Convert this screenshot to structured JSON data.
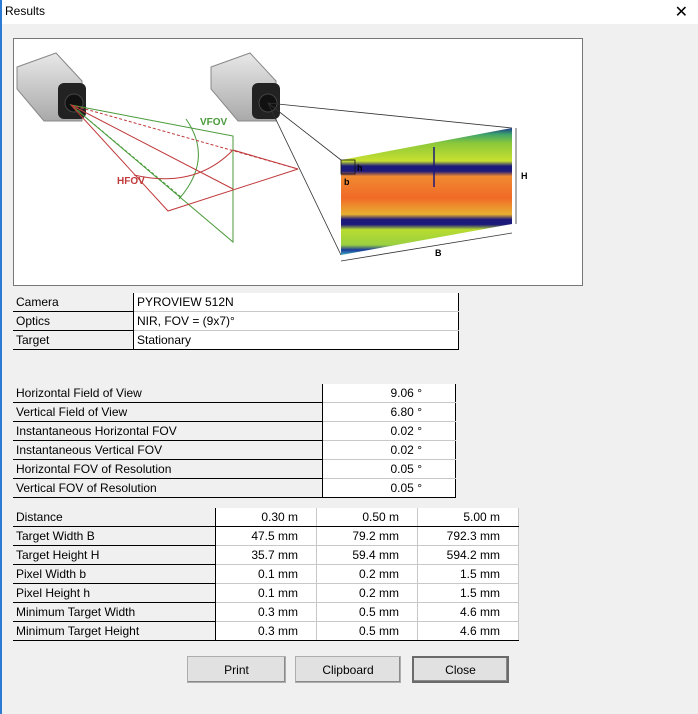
{
  "window": {
    "title": "Results",
    "close_icon": "close-icon"
  },
  "diagram": {
    "vfov_label": "VFOV",
    "hfov_label": "HFOV",
    "h_label": "H",
    "b_label": "B",
    "pixel_h_label": "h",
    "pixel_b_label": "b"
  },
  "info": [
    {
      "label": "Camera",
      "value": "PYROVIEW 512N"
    },
    {
      "label": "Optics",
      "value": "NIR, FOV = (9x7)°"
    },
    {
      "label": "Target",
      "value": "Stationary"
    }
  ],
  "fov": [
    {
      "label": "Horizontal Field of View",
      "value": "9.06 °"
    },
    {
      "label": "Vertical Field of View",
      "value": "6.80 °"
    },
    {
      "label": "Instantaneous Horizontal FOV",
      "value": "0.02 °"
    },
    {
      "label": "Instantaneous Vertical FOV",
      "value": "0.02 °"
    },
    {
      "label": "Horizontal FOV of Resolution",
      "value": "0.05 °"
    },
    {
      "label": "Vertical FOV of Resolution",
      "value": "0.05 °"
    }
  ],
  "distances": {
    "header": {
      "label": "Distance",
      "values": [
        "0.30 m",
        "0.50 m",
        "5.00 m"
      ]
    },
    "rows": [
      {
        "label": "Target Width B",
        "values": [
          "47.5 mm",
          "79.2 mm",
          "792.3 mm"
        ]
      },
      {
        "label": "Target Height H",
        "values": [
          "35.7 mm",
          "59.4 mm",
          "594.2 mm"
        ]
      },
      {
        "label": "Pixel Width b",
        "values": [
          "0.1 mm",
          "0.2 mm",
          "1.5 mm"
        ]
      },
      {
        "label": "Pixel Height h",
        "values": [
          "0.1 mm",
          "0.2 mm",
          "1.5 mm"
        ]
      },
      {
        "label": "Minimum Target Width",
        "values": [
          "0.3 mm",
          "0.5 mm",
          "4.6 mm"
        ]
      },
      {
        "label": "Minimum Target Height",
        "values": [
          "0.3 mm",
          "0.5 mm",
          "4.6 mm"
        ]
      }
    ]
  },
  "buttons": {
    "print": "Print",
    "clipboard": "Clipboard",
    "close": "Close"
  },
  "colors": {
    "hfov": "#c0393b",
    "vfov": "#4a9a3a",
    "accent": "#2b7bd4"
  }
}
